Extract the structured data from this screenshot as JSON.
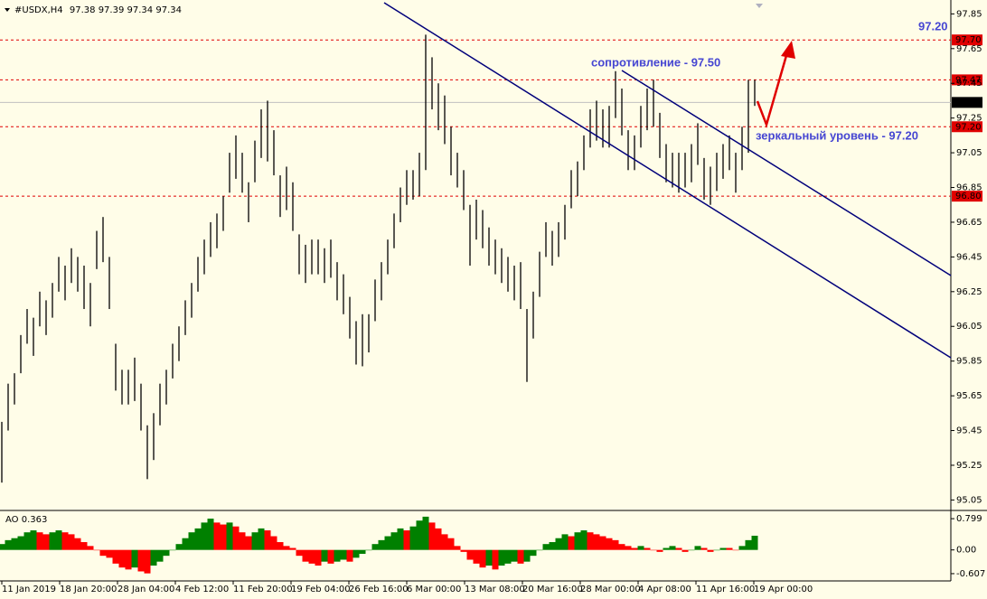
{
  "chart_data": [
    {
      "type": "range_bar",
      "title": "#USDX,H4",
      "quote": [
        97.38,
        97.39,
        97.34,
        97.34
      ],
      "color": "#000000",
      "high": [
        95.5,
        95.72,
        95.78,
        96.0,
        96.15,
        96.1,
        96.25,
        96.2,
        96.3,
        96.45,
        96.4,
        96.5,
        96.45,
        96.4,
        96.3,
        96.6,
        96.68,
        96.45,
        95.95,
        95.8,
        95.8,
        95.87,
        95.72,
        95.48,
        95.55,
        95.72,
        95.8,
        95.95,
        96.05,
        96.2,
        96.3,
        96.45,
        96.55,
        96.65,
        96.7,
        96.8,
        97.05,
        97.15,
        97.05,
        96.88,
        97.12,
        97.3,
        97.35,
        97.18,
        96.92,
        96.97,
        96.88,
        96.58,
        96.52,
        96.55,
        96.55,
        96.5,
        96.55,
        96.42,
        96.35,
        96.22,
        96.08,
        96.12,
        96.12,
        96.32,
        96.42,
        96.55,
        96.7,
        96.85,
        96.95,
        96.95,
        97.05,
        97.73,
        97.6,
        97.45,
        97.38,
        97.2,
        97.05,
        96.95,
        96.75,
        96.78,
        96.72,
        96.62,
        96.55,
        96.5,
        96.45,
        96.4,
        96.42,
        96.15,
        96.25,
        96.48,
        96.65,
        96.6,
        96.65,
        96.75,
        96.95,
        97.0,
        97.15,
        97.3,
        97.35,
        97.3,
        97.32,
        97.52,
        97.42,
        97.18,
        97.15,
        97.32,
        97.42,
        97.47,
        97.28,
        97.1,
        97.05,
        97.05,
        97.05,
        97.1,
        97.22,
        97.02,
        96.97,
        97.05,
        97.1,
        97.15,
        97.05,
        97.2,
        97.47,
        97.47
      ],
      "low": [
        95.15,
        95.45,
        95.6,
        95.78,
        95.95,
        95.88,
        96.05,
        96.0,
        96.1,
        96.25,
        96.2,
        96.3,
        96.25,
        96.15,
        96.05,
        96.38,
        96.42,
        96.15,
        95.68,
        95.6,
        95.6,
        95.62,
        95.45,
        95.17,
        95.28,
        95.48,
        95.6,
        95.75,
        95.85,
        96.0,
        96.1,
        96.25,
        96.35,
        96.45,
        96.5,
        96.6,
        96.82,
        96.9,
        96.82,
        96.65,
        96.88,
        97.02,
        97.0,
        96.92,
        96.68,
        96.72,
        96.6,
        96.35,
        96.3,
        96.35,
        96.35,
        96.3,
        96.33,
        96.2,
        96.12,
        95.98,
        95.83,
        95.82,
        95.9,
        96.08,
        96.2,
        96.35,
        96.5,
        96.65,
        96.75,
        96.78,
        96.8,
        96.95,
        97.3,
        97.18,
        97.1,
        96.92,
        96.85,
        96.72,
        96.4,
        96.55,
        96.5,
        96.4,
        96.35,
        96.3,
        96.25,
        96.2,
        96.15,
        95.73,
        95.98,
        96.22,
        96.45,
        96.4,
        96.45,
        96.55,
        96.73,
        96.8,
        96.95,
        97.08,
        97.12,
        97.08,
        97.08,
        97.25,
        97.15,
        96.95,
        96.95,
        97.08,
        97.18,
        97.2,
        97.02,
        96.88,
        96.85,
        96.82,
        96.85,
        96.88,
        96.98,
        96.78,
        96.75,
        96.83,
        96.9,
        96.95,
        96.82,
        96.95,
        97.05,
        97.32
      ],
      "x_labels": [
        "11 Jan 2019",
        "18 Jan 20:00",
        "28 Jan 04:00",
        "4 Feb 12:00",
        "11 Feb 20:00",
        "19 Feb 04:00",
        "26 Feb 16:00",
        "6 Mar 00:00",
        "13 Mar 08:00",
        "20 Mar 16:00",
        "28 Mar 00:00",
        "4 Apr 08:00",
        "11 Apr 16:00",
        "19 Apr 00:00"
      ],
      "ylim": [
        95.0,
        97.93
      ],
      "yticks": [
        97.85,
        97.65,
        97.45,
        97.25,
        97.05,
        96.85,
        96.65,
        96.45,
        96.25,
        96.05,
        95.85,
        95.65,
        95.45,
        95.25,
        95.05
      ],
      "levels": [
        {
          "value": 97.7,
          "label": "97.70",
          "color": "#e00000",
          "dashed": true
        },
        {
          "value": 97.47,
          "label": "97.47",
          "color": "#e00000",
          "dashed": true
        },
        {
          "value": 97.34,
          "label": "97.34",
          "color": "#000000",
          "dashed": false
        },
        {
          "value": 97.2,
          "label": "97.20",
          "color": "#e00000",
          "dashed": true
        },
        {
          "value": 96.8,
          "label": "96.80",
          "color": "#e00000",
          "dashed": true
        }
      ],
      "annotations": [
        "97.20",
        "сопротивление - 97.50",
        "зеркальный уровень - 97.20"
      ]
    },
    {
      "type": "histogram",
      "title": "AO",
      "current": 0.363,
      "up_color": "#008000",
      "down_color": "#ff0000",
      "values": [
        0.15,
        0.25,
        0.3,
        0.35,
        0.45,
        0.5,
        0.45,
        0.4,
        0.45,
        0.5,
        0.45,
        0.4,
        0.3,
        0.2,
        0.1,
        0.0,
        -0.15,
        -0.2,
        -0.35,
        -0.45,
        -0.5,
        -0.45,
        -0.55,
        -0.6,
        -0.4,
        -0.3,
        -0.15,
        0.0,
        0.15,
        0.3,
        0.45,
        0.55,
        0.7,
        0.8,
        0.7,
        0.65,
        0.7,
        0.6,
        0.45,
        0.35,
        0.45,
        0.55,
        0.5,
        0.35,
        0.2,
        0.1,
        0.05,
        -0.15,
        -0.3,
        -0.35,
        -0.4,
        -0.3,
        -0.35,
        -0.3,
        -0.25,
        -0.3,
        -0.2,
        -0.1,
        0.0,
        0.15,
        0.25,
        0.35,
        0.45,
        0.55,
        0.5,
        0.6,
        0.75,
        0.85,
        0.7,
        0.55,
        0.4,
        0.3,
        0.1,
        -0.05,
        -0.25,
        -0.35,
        -0.45,
        -0.4,
        -0.5,
        -0.4,
        -0.35,
        -0.3,
        -0.35,
        -0.3,
        -0.15,
        0.0,
        0.15,
        0.2,
        0.3,
        0.4,
        0.35,
        0.45,
        0.5,
        0.45,
        0.4,
        0.35,
        0.3,
        0.25,
        0.15,
        0.1,
        0.05,
        0.1,
        0.05,
        0.0,
        -0.05,
        0.05,
        0.1,
        0.05,
        -0.05,
        0.0,
        0.1,
        0.05,
        -0.05,
        0.0,
        0.05,
        0.05,
        0.0,
        0.1,
        0.25,
        0.363
      ],
      "ylim": [
        -0.77,
        0.94
      ],
      "yticks": [
        0.799,
        {
          "value": 0,
          "label": "0.00"
        },
        -0.607
      ]
    }
  ]
}
